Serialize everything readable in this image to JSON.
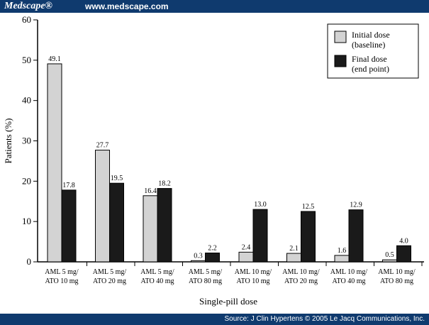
{
  "header": {
    "brand": "Medscape®",
    "site": "www.medscape.com"
  },
  "footer": {
    "source": "Source: J Clin Hypertens © 2005 Le Jacq Communications, Inc."
  },
  "colors": {
    "initial_fill": "#d3d3d3",
    "final_fill": "#1a1a1a",
    "bar_header": "#0f3a6e"
  },
  "chart_data": {
    "type": "bar",
    "title": "",
    "xlabel": "Single-pill dose",
    "ylabel": "Patients (%)",
    "ylim": [
      0,
      60
    ],
    "yticks": [
      0,
      10,
      20,
      30,
      40,
      50,
      60
    ],
    "categories": [
      [
        "AML 5 mg/",
        "ATO 10 mg"
      ],
      [
        "AML 5 mg/",
        "ATO 20 mg"
      ],
      [
        "AML 5 mg/",
        "ATO 40 mg"
      ],
      [
        "AML 5 mg/",
        "ATO 80 mg"
      ],
      [
        "AML 10 mg/",
        "ATO 10 mg"
      ],
      [
        "AML 10 mg/",
        "ATO 20 mg"
      ],
      [
        "AML 10 mg/",
        "ATO 40 mg"
      ],
      [
        "AML 10 mg/",
        "ATO 80 mg"
      ]
    ],
    "series": [
      {
        "name": "Initial dose",
        "name_sub": "(baseline)",
        "values": [
          49.1,
          27.7,
          16.4,
          0.3,
          2.4,
          2.1,
          1.6,
          0.5
        ],
        "labels": [
          "49.1",
          "27.7",
          "16.4",
          "0.3",
          "2.4",
          "2.1",
          "1.6",
          "0.5"
        ]
      },
      {
        "name": "Final dose",
        "name_sub": "(end point)",
        "values": [
          17.8,
          19.5,
          18.2,
          2.2,
          13.0,
          12.5,
          12.9,
          4.0
        ],
        "labels": [
          "17.8",
          "19.5",
          "18.2",
          "2.2",
          "13.0",
          "12.5",
          "12.9",
          "4.0"
        ]
      }
    ],
    "legend_position": "top-right"
  }
}
